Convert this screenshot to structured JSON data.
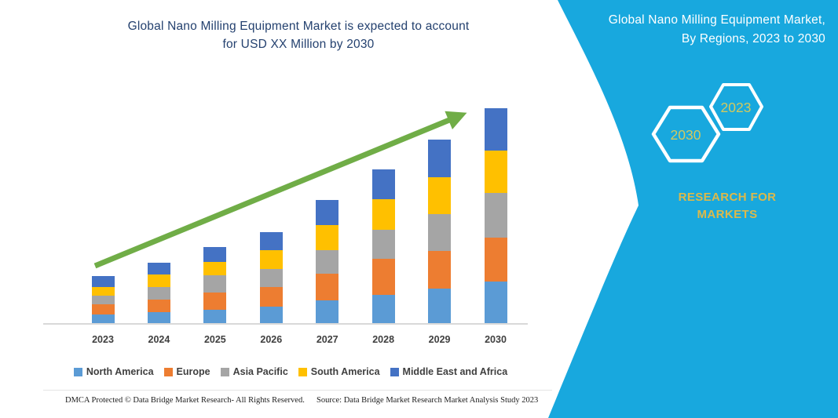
{
  "header": {
    "title_line1": "Global Nano Milling Equipment Market is expected to account",
    "title_line2": "for USD XX Million by 2030"
  },
  "side_panel": {
    "title_line1": "Global Nano Milling Equipment Market,",
    "title_line2": "By Regions, 2023 to 2030",
    "hexagon_back_label": "2030",
    "hexagon_front_label": "2023",
    "brand_line1": "RESEARCH FOR",
    "brand_line2": "MARKETS",
    "background_color": "#18A8DE",
    "hexagon_outline_color": "#FFFFFF",
    "hexagon_text_color": "#D2C95E",
    "brand_text_color": "#DDB94A"
  },
  "chart_data": {
    "type": "bar",
    "stacked": true,
    "title": "Global Nano Milling Equipment Market is expected to account for USD XX Million by 2030",
    "xlabel": "",
    "ylabel": "",
    "y_axis_visible": false,
    "units": "USD Million (axis unlabeled; values are relative estimates read from bar heights)",
    "grid": false,
    "legend_position": "bottom",
    "categories": [
      "2023",
      "2024",
      "2025",
      "2026",
      "2027",
      "2028",
      "2029",
      "2030"
    ],
    "series": [
      {
        "name": "North America",
        "color": "#5B9BD5",
        "values": [
          12,
          15,
          18,
          22,
          30,
          37,
          45,
          54
        ]
      },
      {
        "name": "Europe",
        "color": "#ED7D31",
        "values": [
          13,
          16,
          22,
          25,
          34,
          46,
          48,
          56
        ]
      },
      {
        "name": "Asia Pacific",
        "color": "#A5A5A5",
        "values": [
          11,
          16,
          22,
          23,
          30,
          37,
          47,
          57
        ]
      },
      {
        "name": "South America",
        "color": "#FFC000",
        "values": [
          11,
          16,
          17,
          24,
          32,
          39,
          47,
          54
        ]
      },
      {
        "name": "Middle East and Africa",
        "color": "#4472C4",
        "values": [
          14,
          15,
          19,
          23,
          32,
          38,
          48,
          54
        ]
      }
    ],
    "stack_totals": [
      61,
      78,
      98,
      117,
      158,
      197,
      235,
      275
    ],
    "trend_arrow": {
      "color": "#70AD47",
      "direction": "up"
    }
  },
  "footer": {
    "left": "DMCA Protected © Data Bridge Market Research-  All Rights Reserved.",
    "right": "Source: Data Bridge Market Research  Market Analysis Study 2023"
  }
}
